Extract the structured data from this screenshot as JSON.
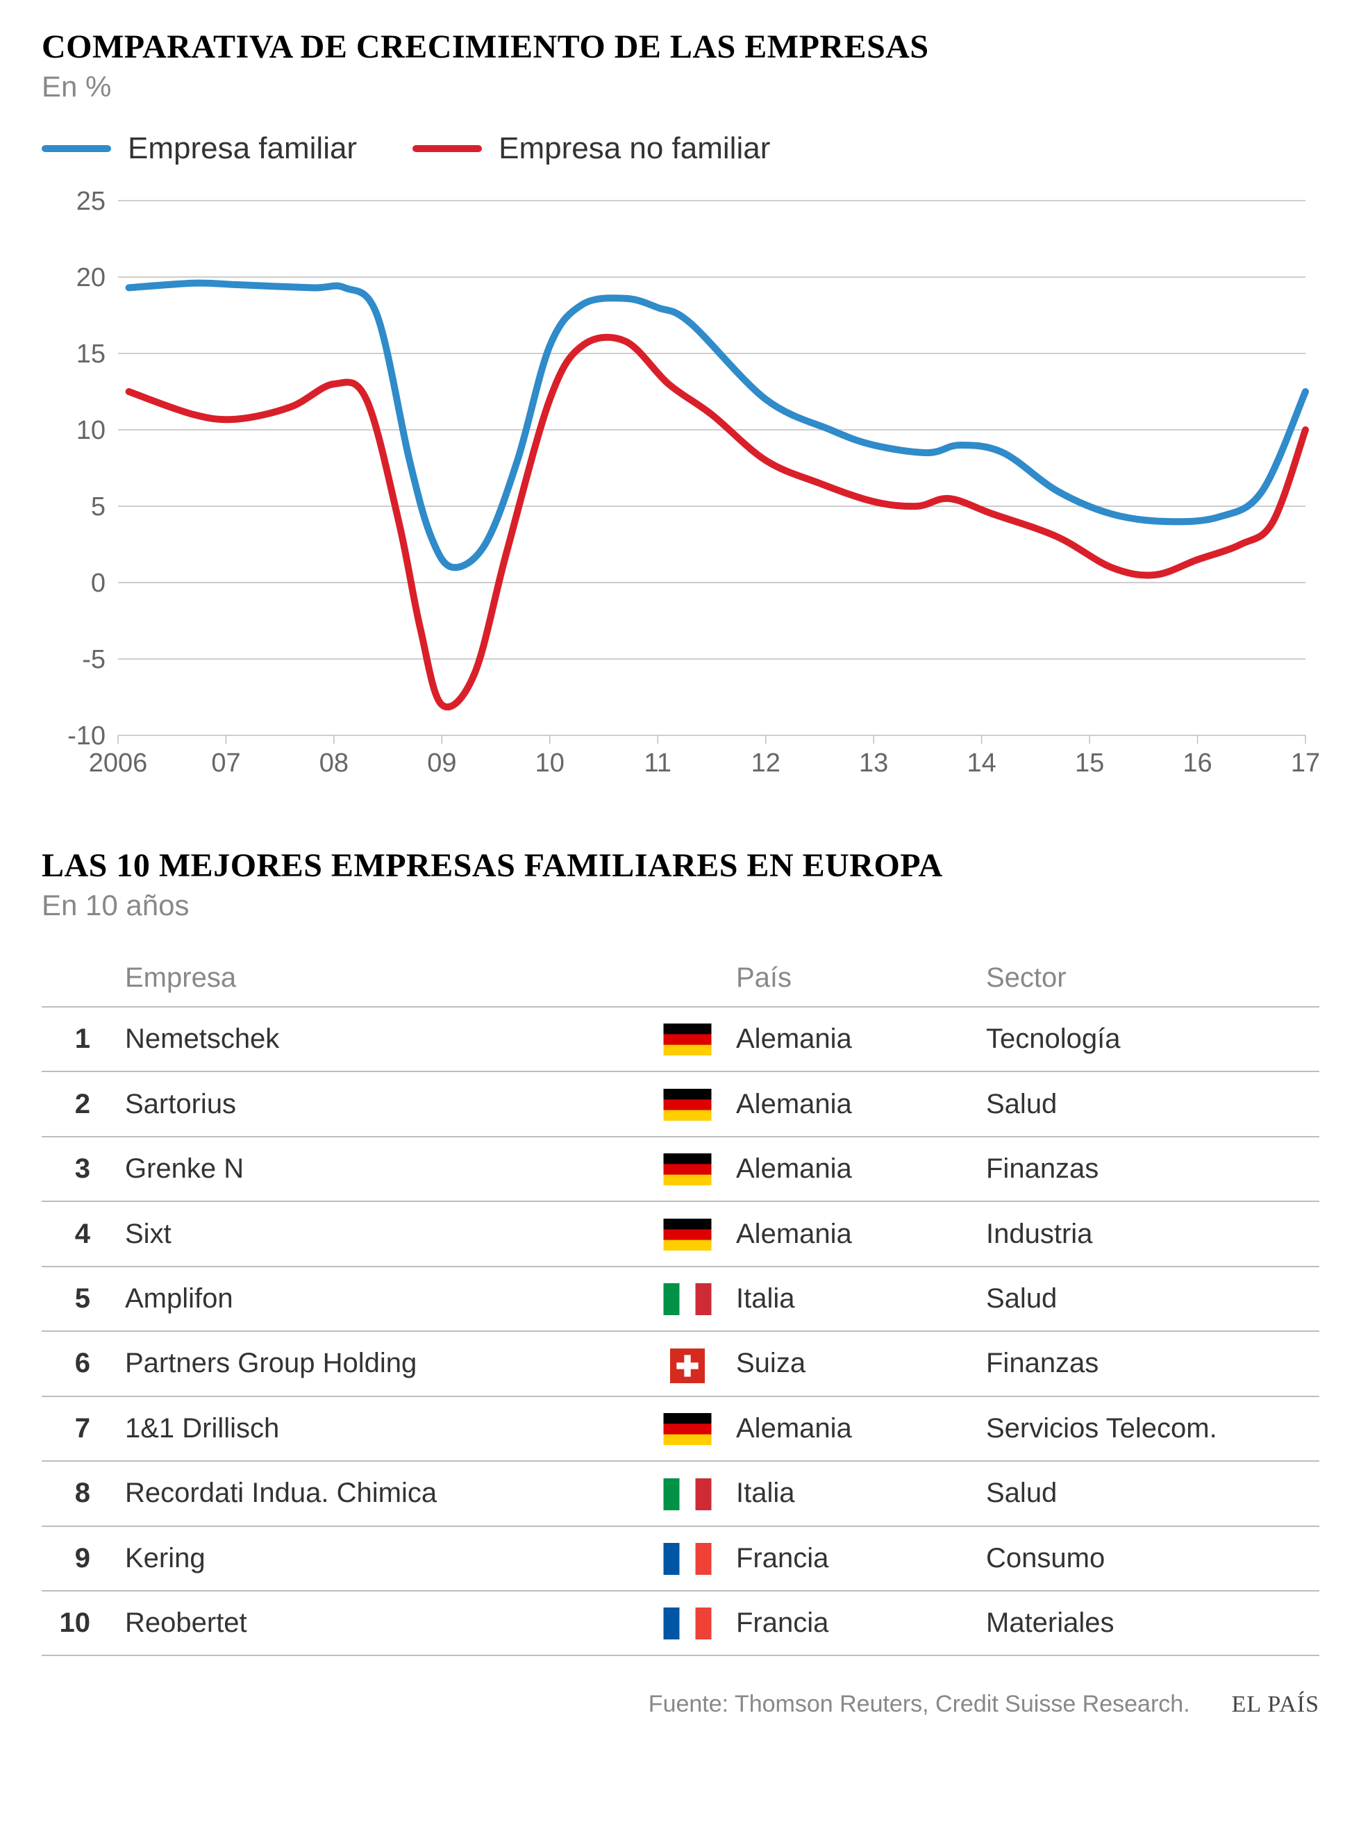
{
  "chart": {
    "title": "COMPARATIVA DE CRECIMIENTO DE LAS EMPRESAS",
    "subtitle": "En %",
    "type": "line",
    "background_color": "#ffffff",
    "grid_color": "#bdbdbd",
    "axis_line_color": "#999999",
    "axis_label_color": "#666666",
    "axis_fontsize": 38,
    "title_fontsize": 48,
    "line_width": 10,
    "ylim": [
      -10,
      25
    ],
    "ytick_step": 5,
    "yticks": [
      -10,
      -5,
      0,
      5,
      10,
      15,
      20,
      25
    ],
    "x_labels": [
      "2006",
      "07",
      "08",
      "09",
      "10",
      "11",
      "12",
      "13",
      "14",
      "15",
      "16",
      "17"
    ],
    "x_values": [
      2006,
      2007,
      2008,
      2009,
      2010,
      2011,
      2012,
      2013,
      2014,
      2015,
      2016,
      2017
    ],
    "legend": [
      {
        "label": "Empresa familiar",
        "color": "#2f8bc9"
      },
      {
        "label": "Empresa no familiar",
        "color": "#d9202a"
      }
    ],
    "series": [
      {
        "name": "Empresa familiar",
        "color": "#2f8bc9",
        "points": [
          [
            2006.1,
            19.3
          ],
          [
            2006.7,
            19.6
          ],
          [
            2007.1,
            19.5
          ],
          [
            2007.8,
            19.3
          ],
          [
            2008.1,
            19.3
          ],
          [
            2008.4,
            17.5
          ],
          [
            2008.7,
            8.0
          ],
          [
            2008.9,
            3.0
          ],
          [
            2009.1,
            1.0
          ],
          [
            2009.4,
            2.5
          ],
          [
            2009.7,
            8.0
          ],
          [
            2010.0,
            15.5
          ],
          [
            2010.3,
            18.2
          ],
          [
            2010.7,
            18.6
          ],
          [
            2011.0,
            18.0
          ],
          [
            2011.3,
            17.0
          ],
          [
            2012.0,
            12.0
          ],
          [
            2012.6,
            10.0
          ],
          [
            2013.0,
            9.0
          ],
          [
            2013.5,
            8.5
          ],
          [
            2013.8,
            9.0
          ],
          [
            2014.2,
            8.5
          ],
          [
            2014.7,
            6.0
          ],
          [
            2015.2,
            4.5
          ],
          [
            2015.7,
            4.0
          ],
          [
            2016.2,
            4.3
          ],
          [
            2016.6,
            6.0
          ],
          [
            2017.0,
            12.5
          ]
        ]
      },
      {
        "name": "Empresa no familiar",
        "color": "#d9202a",
        "points": [
          [
            2006.1,
            12.5
          ],
          [
            2006.7,
            11.0
          ],
          [
            2007.1,
            10.7
          ],
          [
            2007.6,
            11.5
          ],
          [
            2008.0,
            13.0
          ],
          [
            2008.3,
            12.0
          ],
          [
            2008.6,
            4.0
          ],
          [
            2008.8,
            -3.0
          ],
          [
            2009.0,
            -8.0
          ],
          [
            2009.3,
            -6.0
          ],
          [
            2009.6,
            2.0
          ],
          [
            2010.0,
            12.0
          ],
          [
            2010.3,
            15.5
          ],
          [
            2010.7,
            15.8
          ],
          [
            2011.1,
            13.0
          ],
          [
            2011.5,
            11.0
          ],
          [
            2012.0,
            8.0
          ],
          [
            2012.5,
            6.5
          ],
          [
            2013.0,
            5.3
          ],
          [
            2013.4,
            5.0
          ],
          [
            2013.7,
            5.5
          ],
          [
            2014.1,
            4.5
          ],
          [
            2014.7,
            3.0
          ],
          [
            2015.2,
            1.0
          ],
          [
            2015.6,
            0.5
          ],
          [
            2016.0,
            1.5
          ],
          [
            2016.4,
            2.5
          ],
          [
            2016.7,
            4.0
          ],
          [
            2017.0,
            10.0
          ]
        ]
      }
    ]
  },
  "table": {
    "title": "LAS 10 MEJORES EMPRESAS FAMILIARES EN EUROPA",
    "subtitle": "En 10 años",
    "header_color": "#888888",
    "row_border_color": "#bdbdbd",
    "cell_fontsize": 40,
    "columns": [
      "",
      "Empresa",
      "",
      "País",
      "Sector"
    ],
    "rows": [
      {
        "rank": "1",
        "company": "Nemetschek",
        "flag": "de",
        "country": "Alemania",
        "sector": "Tecnología"
      },
      {
        "rank": "2",
        "company": "Sartorius",
        "flag": "de",
        "country": "Alemania",
        "sector": "Salud"
      },
      {
        "rank": "3",
        "company": "Grenke N",
        "flag": "de",
        "country": "Alemania",
        "sector": "Finanzas"
      },
      {
        "rank": "4",
        "company": "Sixt",
        "flag": "de",
        "country": "Alemania",
        "sector": "Industria"
      },
      {
        "rank": "5",
        "company": "Amplifon",
        "flag": "it",
        "country": "Italia",
        "sector": "Salud"
      },
      {
        "rank": "6",
        "company": "Partners Group Holding",
        "flag": "ch",
        "country": "Suiza",
        "sector": "Finanzas"
      },
      {
        "rank": "7",
        "company": "1&1 Drillisch",
        "flag": "de",
        "country": "Alemania",
        "sector": "Servicios Telecom."
      },
      {
        "rank": "8",
        "company": "Recordati Indua. Chimica",
        "flag": "it",
        "country": "Italia",
        "sector": "Salud"
      },
      {
        "rank": "9",
        "company": "Kering",
        "flag": "fr",
        "country": "Francia",
        "sector": "Consumo"
      },
      {
        "rank": "10",
        "company": "Reobertet",
        "flag": "fr",
        "country": "Francia",
        "sector": "Materiales"
      }
    ]
  },
  "footer": {
    "source": "Fuente: Thomson Reuters, Credit Suisse Research.",
    "brand": "EL PAÍS"
  },
  "flags": {
    "de": {
      "type": "h3",
      "colors": [
        "#000000",
        "#dd0000",
        "#ffce00"
      ]
    },
    "it": {
      "type": "v3",
      "colors": [
        "#009246",
        "#ffffff",
        "#ce2b37"
      ]
    },
    "fr": {
      "type": "v3",
      "colors": [
        "#0055a4",
        "#ffffff",
        "#ef4135"
      ]
    },
    "ch": {
      "type": "swiss",
      "bg": "#d52b1e",
      "cross": "#ffffff"
    }
  }
}
